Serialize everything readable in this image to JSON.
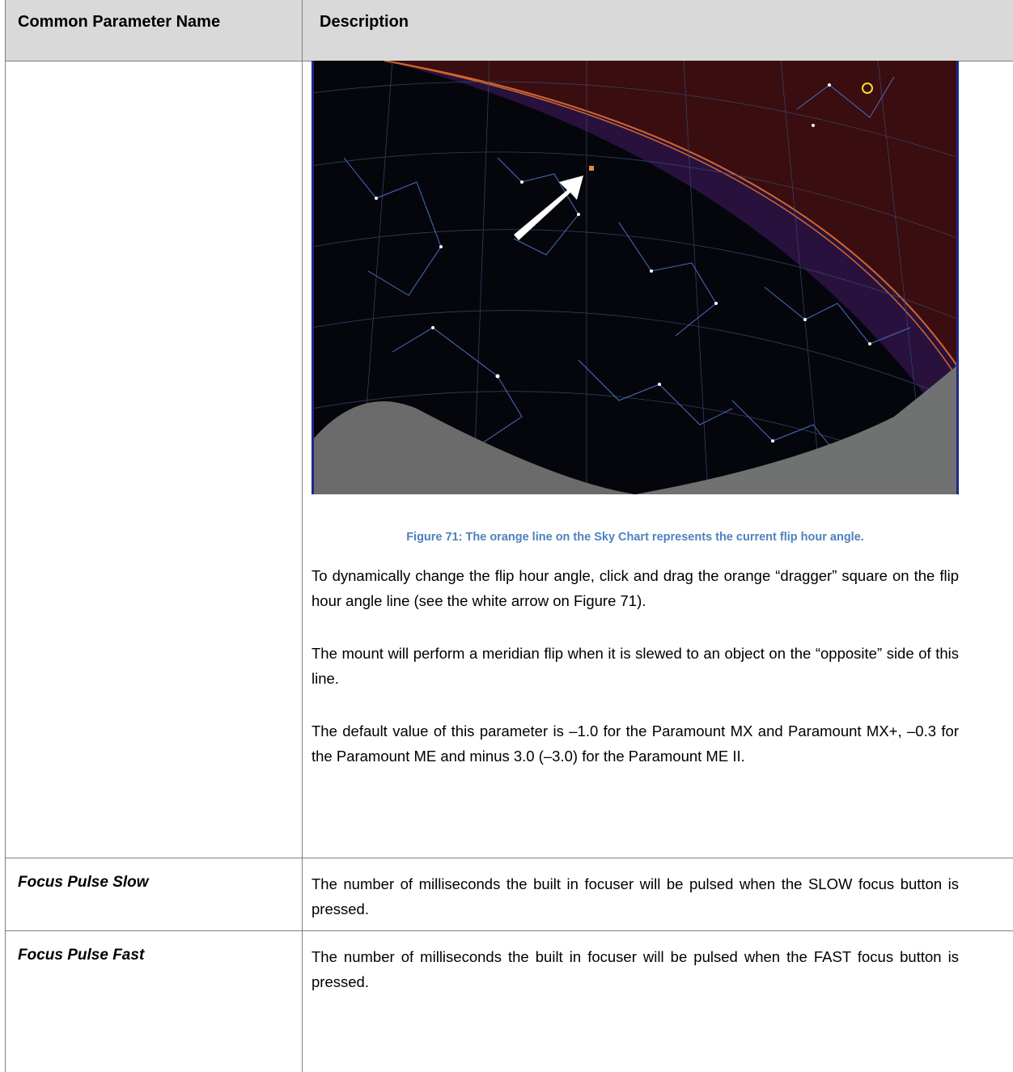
{
  "table": {
    "header": [
      "Common Parameter Name",
      "Description"
    ],
    "rows": [
      {
        "caption": "Figure 71: The orange line on the Sky Chart represents the current flip hour angle.",
        "paragraphs": [
          "To dynamically change the flip hour angle, click and drag the orange “dragger” square on the flip hour angle line (see the white arrow on Figure 71).",
          "The mount will perform a meridian flip when it is slewed to an object on the “opposite” side of this line.",
          "The default value of this parameter is –1.0 for the Paramount MX and Paramount MX+, –0.3 for the Paramount ME and minus 3.0 (–3.0) for the Paramount ME II."
        ]
      },
      {
        "name": "Focus Pulse Slow",
        "paragraphs": [
          "The number of milliseconds the built in focuser will be pulsed when the SLOW focus button is pressed."
        ]
      },
      {
        "name": "Focus Pulse Fast",
        "paragraphs": [
          "The number of milliseconds the built in focuser will be pulsed when the FAST focus button is pressed."
        ]
      }
    ]
  }
}
